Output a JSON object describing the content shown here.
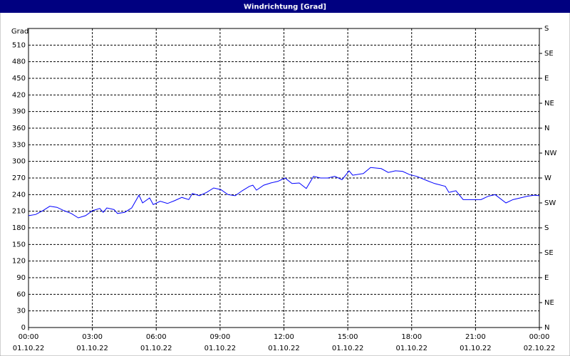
{
  "chart_data": {
    "type": "line",
    "title": "Windrichtung [Grad]",
    "y_label": "Grad",
    "x": [
      0,
      0.33,
      0.67,
      1.0,
      1.34,
      1.67,
      2.01,
      2.34,
      2.68,
      3.01,
      3.35,
      3.51,
      3.68,
      4.02,
      4.18,
      4.52,
      4.85,
      5.19,
      5.36,
      5.69,
      5.86,
      6.19,
      6.53,
      6.86,
      7.2,
      7.53,
      7.7,
      8.03,
      8.37,
      8.7,
      9.04,
      9.37,
      9.71,
      10.04,
      10.38,
      10.54,
      10.71,
      11.05,
      11.38,
      11.72,
      12.05,
      12.38,
      12.72,
      13.05,
      13.39,
      13.72,
      14.06,
      14.39,
      14.73,
      15.06,
      15.23,
      15.73,
      16.07,
      16.57,
      16.9,
      17.24,
      17.57,
      17.91,
      18.24,
      18.74,
      19.08,
      19.58,
      19.75,
      20.08,
      20.42,
      20.75,
      21.26,
      21.59,
      21.92,
      22.43,
      22.76,
      23.1,
      23.43,
      23.77,
      24.0
    ],
    "values": [
      202,
      204,
      211,
      219,
      217,
      211,
      206,
      198,
      202,
      211,
      215,
      208,
      216,
      213,
      206,
      208,
      216,
      239,
      225,
      234,
      222,
      228,
      224,
      229,
      235,
      231,
      242,
      238,
      244,
      252,
      249,
      240,
      238,
      247,
      255,
      257,
      248,
      257,
      261,
      264,
      270,
      260,
      261,
      251,
      273,
      270,
      270,
      273,
      267,
      283,
      275,
      278,
      289,
      287,
      280,
      283,
      282,
      276,
      273,
      265,
      260,
      255,
      244,
      247,
      231,
      231,
      231,
      237,
      240,
      225,
      231,
      234,
      237,
      239,
      238
    ],
    "color": "#0000ff",
    "xlim": [
      0,
      24
    ],
    "xticks": [
      {
        "value": 0,
        "label": "00:00"
      },
      {
        "value": 3,
        "label": "03:00"
      },
      {
        "value": 6,
        "label": "06:00"
      },
      {
        "value": 9,
        "label": "09:00"
      },
      {
        "value": 12,
        "label": "12:00"
      },
      {
        "value": 15,
        "label": "15:00"
      },
      {
        "value": 18,
        "label": "18:00"
      },
      {
        "value": 21,
        "label": "21:00"
      },
      {
        "value": 24,
        "label": "00:00"
      }
    ],
    "xtick_dates": [
      "01.10.22",
      "01.10.22",
      "01.10.22",
      "01.10.22",
      "01.10.22",
      "01.10.22",
      "01.10.22",
      "01.10.22",
      "02.10.22"
    ],
    "ylim": [
      0,
      540
    ],
    "yticks": [
      0,
      30,
      60,
      90,
      120,
      150,
      180,
      210,
      240,
      270,
      300,
      330,
      360,
      390,
      420,
      450,
      480,
      510
    ],
    "y2lim": [
      0,
      540
    ],
    "y2ticks": [
      {
        "value": 0,
        "label": "N"
      },
      {
        "value": 45,
        "label": "NE"
      },
      {
        "value": 90,
        "label": "E"
      },
      {
        "value": 135,
        "label": "SE"
      },
      {
        "value": 180,
        "label": "S"
      },
      {
        "value": 225,
        "label": "SW"
      },
      {
        "value": 270,
        "label": "W"
      },
      {
        "value": 315,
        "label": "NW"
      },
      {
        "value": 360,
        "label": "N"
      },
      {
        "value": 405,
        "label": "NE"
      },
      {
        "value": 450,
        "label": "E"
      },
      {
        "value": 495,
        "label": "SE"
      },
      {
        "value": 540,
        "label": "S"
      }
    ],
    "grid": true
  }
}
